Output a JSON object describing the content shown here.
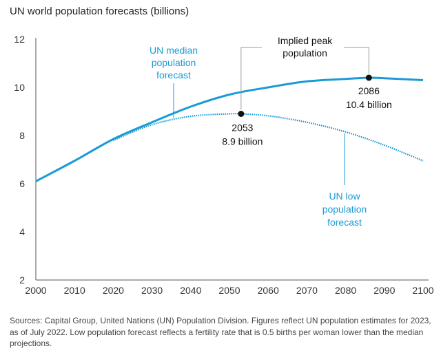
{
  "chart_data": {
    "type": "line",
    "title": "UN world population forecasts (billions)",
    "xlabel": "",
    "ylabel": "",
    "xlim": [
      2000,
      2100
    ],
    "ylim": [
      2,
      12
    ],
    "x_ticks": [
      2000,
      2010,
      2020,
      2030,
      2040,
      2050,
      2060,
      2070,
      2080,
      2090,
      2100
    ],
    "y_ticks": [
      2,
      4,
      6,
      8,
      10,
      12
    ],
    "series": [
      {
        "name": "UN median population forecast",
        "style": "solid",
        "color": "#1a9ad6",
        "x": [
          2000,
          2010,
          2020,
          2030,
          2040,
          2050,
          2060,
          2070,
          2080,
          2086,
          2090,
          2100
        ],
        "values": [
          6.1,
          6.95,
          7.85,
          8.55,
          9.2,
          9.7,
          10.0,
          10.25,
          10.35,
          10.4,
          10.38,
          10.3
        ]
      },
      {
        "name": "UN low population forecast",
        "style": "dotted",
        "color": "#1a9ad6",
        "x": [
          2020,
          2030,
          2040,
          2050,
          2053,
          2060,
          2070,
          2080,
          2090,
          2100
        ],
        "values": [
          7.8,
          8.45,
          8.8,
          8.9,
          8.9,
          8.82,
          8.55,
          8.15,
          7.6,
          6.95
        ]
      }
    ],
    "peaks": [
      {
        "x": 2053,
        "y": 8.9,
        "year_label": "2053",
        "value_label": "8.9 billion"
      },
      {
        "x": 2086,
        "y": 10.4,
        "year_label": "2086",
        "value_label": "10.4 billion"
      }
    ],
    "annotations": {
      "median_label": [
        "UN median",
        "population",
        "forecast"
      ],
      "low_label": [
        "UN low",
        "population",
        "forecast"
      ],
      "peak_label": [
        "Implied peak",
        "population"
      ]
    }
  },
  "footnote": "Sources: Capital Group, United Nations (UN) Population Division. Figures reflect UN population estimates for 2023, as of July 2022. Low population forecast reflects a fertility rate that is 0.5 births per woman lower than the median projections."
}
